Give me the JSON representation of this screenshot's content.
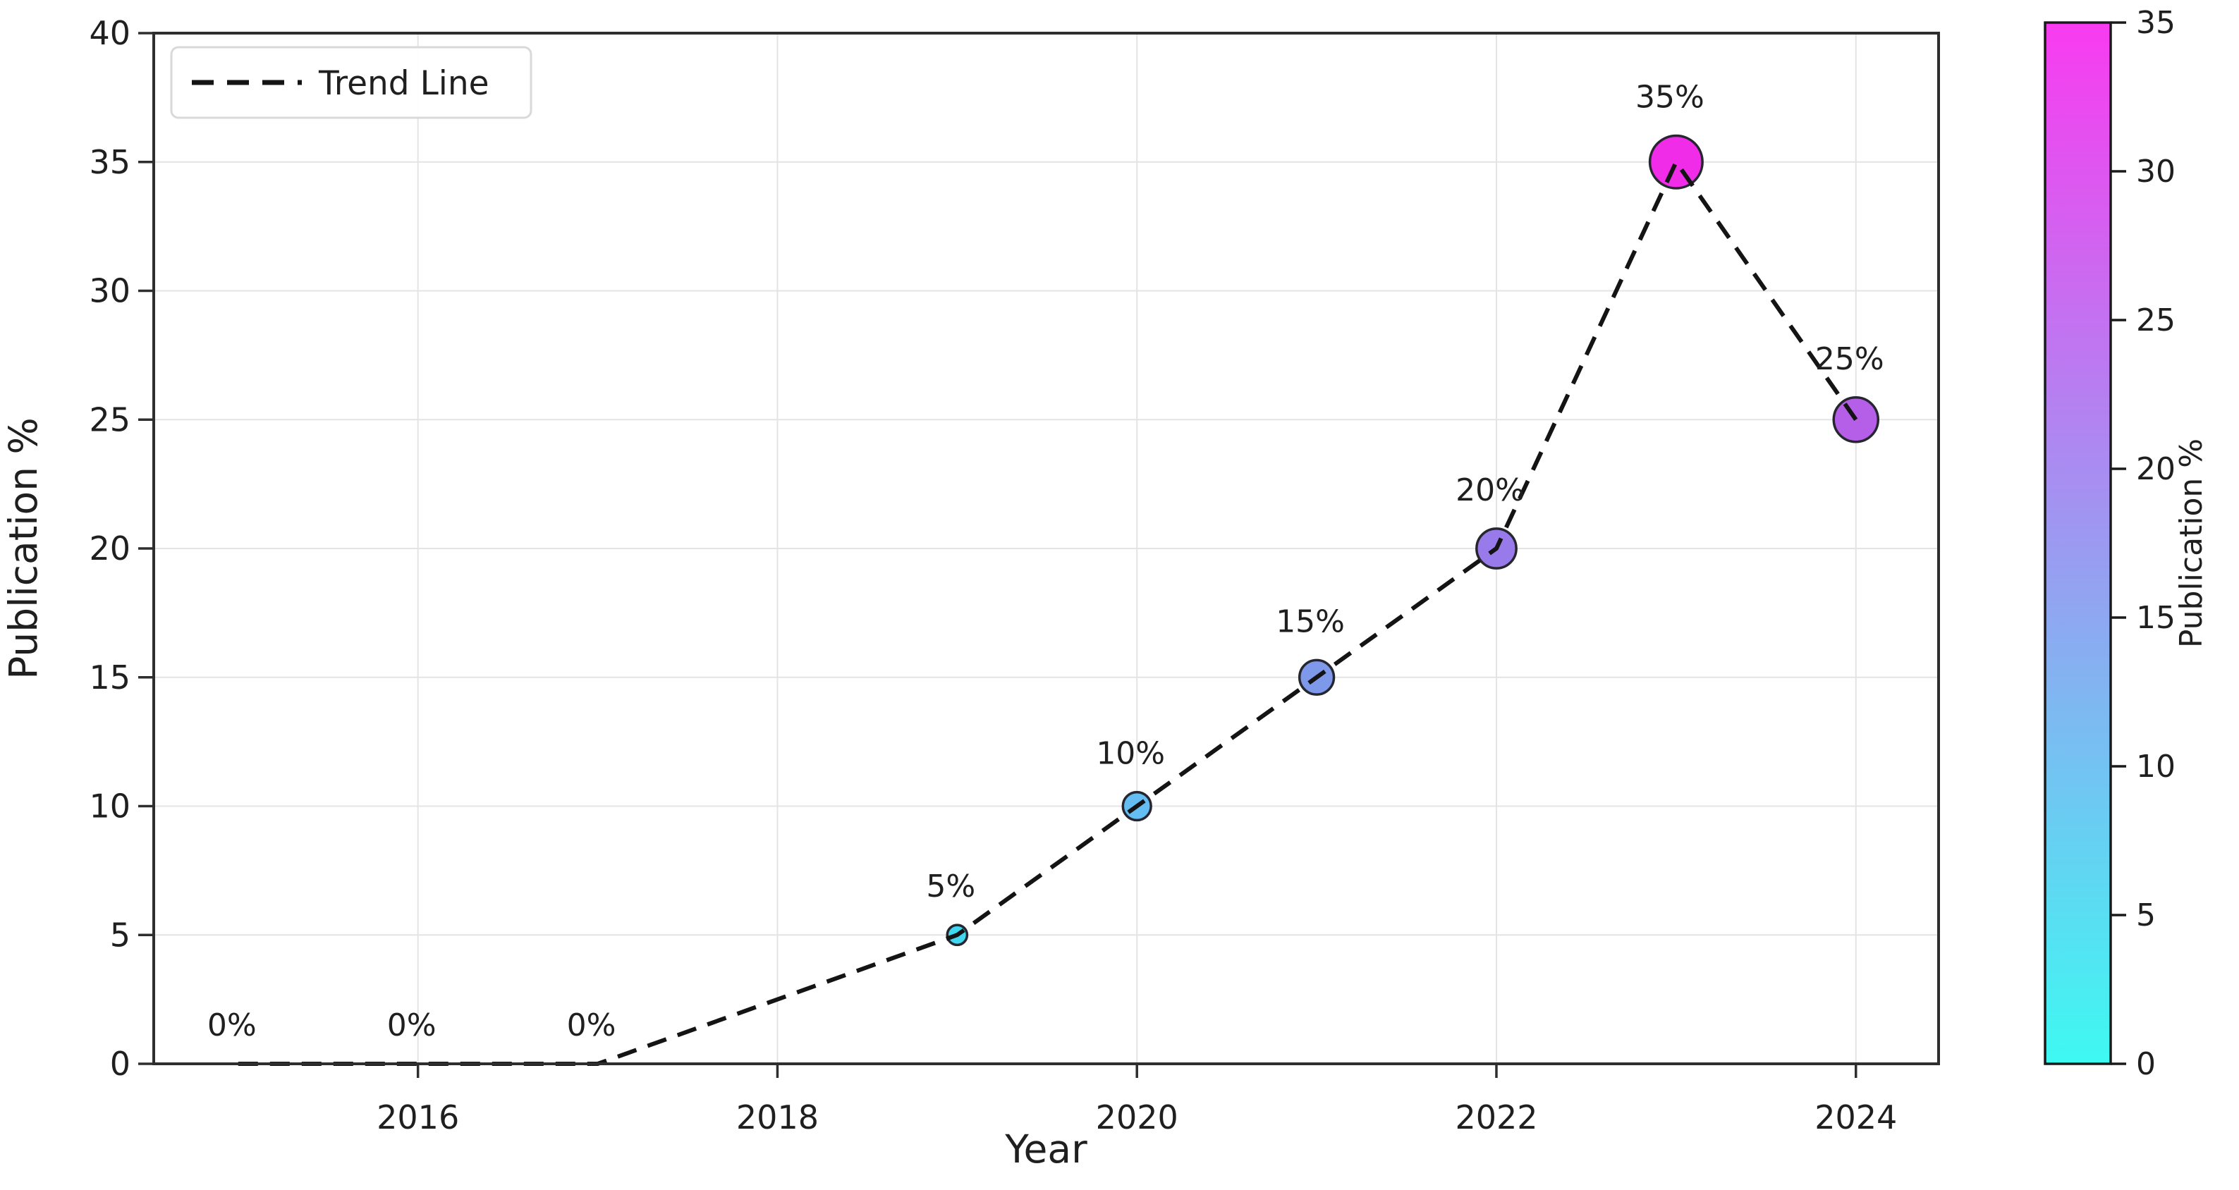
{
  "figure": {
    "background": "#ffffff"
  },
  "chart_data": {
    "type": "scatter",
    "title": "",
    "xlabel": "Year",
    "ylabel": "Publication %",
    "xlim": [
      2014.53,
      2024.46
    ],
    "ylim": [
      0,
      40
    ],
    "x_ticks": [
      2016,
      2018,
      2020,
      2022,
      2024
    ],
    "y_ticks": [
      0,
      5,
      10,
      15,
      20,
      25,
      30,
      35,
      40
    ],
    "grid": true,
    "points": [
      {
        "year": 2015,
        "value": 0,
        "label": "0%",
        "color": "#3ff9f2"
      },
      {
        "year": 2016,
        "value": 0,
        "label": "0%",
        "color": "#3ff9f2"
      },
      {
        "year": 2017,
        "value": 0,
        "label": "0%",
        "color": "#3ff9f2"
      },
      {
        "year": 2019,
        "value": 5,
        "label": "5%",
        "color": "#40d7f0"
      },
      {
        "year": 2020,
        "value": 10,
        "label": "10%",
        "color": "#64bef2"
      },
      {
        "year": 2021,
        "value": 15,
        "label": "15%",
        "color": "#7e99ea"
      },
      {
        "year": 2022,
        "value": 20,
        "label": "20%",
        "color": "#997aea"
      },
      {
        "year": 2023,
        "value": 35,
        "label": "35%",
        "color": "#f02ce8"
      },
      {
        "year": 2024,
        "value": 25,
        "label": "25%",
        "color": "#b55fe8"
      }
    ],
    "trend_line": {
      "label": "Trend Line",
      "style": "dashed",
      "color": "#141414"
    },
    "legend": {
      "position": "upper-left",
      "entries": [
        "Trend Line"
      ]
    },
    "colorbar": {
      "label": "Publication %",
      "ticks": [
        0,
        5,
        10,
        15,
        20,
        25,
        30,
        35
      ],
      "min": 0,
      "max": 35,
      "bottom_color": "#3ef9f2",
      "top_color": "#f93bf0"
    },
    "style": {
      "marker_edge_color": "#26262e",
      "grid_color": "#e4e4e4",
      "spine_color": "#2e2e2e",
      "tick_label_color": "#1f1f1f"
    }
  }
}
